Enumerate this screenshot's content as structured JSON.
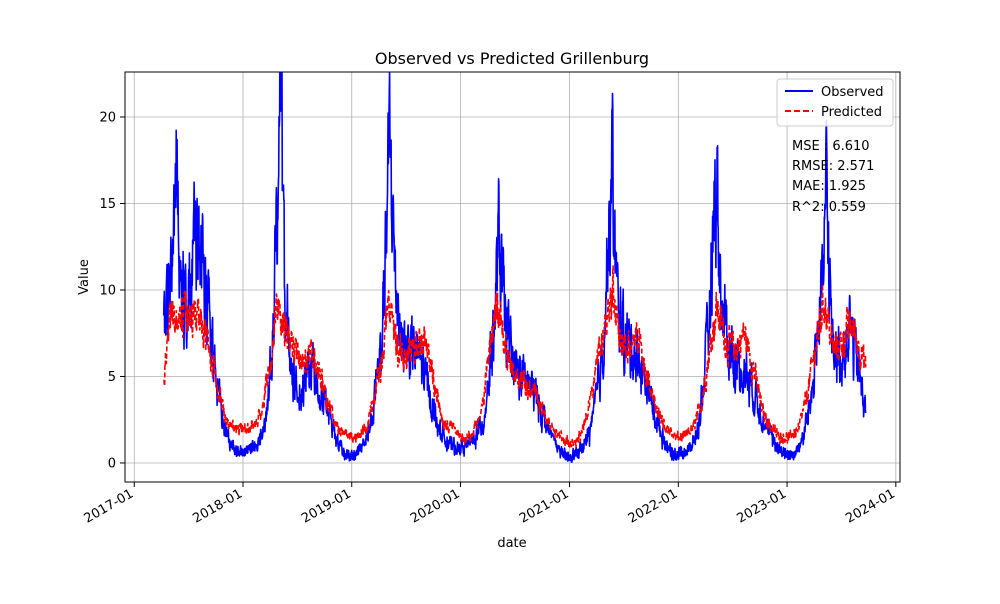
{
  "chart_data": {
    "type": "line",
    "title": "Observed vs Predicted Grillenburg",
    "xlabel": "date",
    "ylabel": "Value",
    "xlim": [
      "2016-12-01",
      "2024-01-15"
    ],
    "ylim": [
      -1.1,
      22.6
    ],
    "x_ticks": [
      "2017-01",
      "2018-01",
      "2019-01",
      "2020-01",
      "2021-01",
      "2022-01",
      "2023-01",
      "2024-01"
    ],
    "y_ticks": [
      0,
      5,
      10,
      15,
      20
    ],
    "grid": true,
    "legend_position": "top-right",
    "date_range": [
      "2017-04-10",
      "2023-09-22"
    ],
    "series": [
      {
        "name": "Observed",
        "color": "#0000ff",
        "style": "solid",
        "anchors": [
          [
            "2017-04-10",
            7.5
          ],
          [
            "2017-05-05",
            11.0
          ],
          [
            "2017-05-20",
            17.0
          ],
          [
            "2017-06-05",
            12.0
          ],
          [
            "2017-06-25",
            9.5
          ],
          [
            "2017-07-10",
            10.5
          ],
          [
            "2017-07-20",
            12.8
          ],
          [
            "2017-08-10",
            11.0
          ],
          [
            "2017-08-25",
            12.0
          ],
          [
            "2017-09-15",
            7.5
          ],
          [
            "2017-10-01",
            5.0
          ],
          [
            "2017-10-25",
            2.5
          ],
          [
            "2017-11-20",
            1.0
          ],
          [
            "2017-12-20",
            0.6
          ],
          [
            "2018-01-20",
            0.7
          ],
          [
            "2018-02-20",
            1.0
          ],
          [
            "2018-03-20",
            2.5
          ],
          [
            "2018-04-10",
            7.0
          ],
          [
            "2018-04-25",
            14.0
          ],
          [
            "2018-05-05",
            21.5
          ],
          [
            "2018-05-20",
            11.0
          ],
          [
            "2018-06-10",
            5.0
          ],
          [
            "2018-07-10",
            4.0
          ],
          [
            "2018-08-10",
            5.5
          ],
          [
            "2018-09-10",
            5.0
          ],
          [
            "2018-10-10",
            3.0
          ],
          [
            "2018-11-10",
            1.5
          ],
          [
            "2018-12-10",
            0.5
          ],
          [
            "2019-01-10",
            0.4
          ],
          [
            "2019-02-10",
            1.0
          ],
          [
            "2019-03-10",
            2.5
          ],
          [
            "2019-04-10",
            6.5
          ],
          [
            "2019-04-25",
            12.0
          ],
          [
            "2019-05-10",
            18.7
          ],
          [
            "2019-05-25",
            11.0
          ],
          [
            "2019-06-20",
            7.0
          ],
          [
            "2019-07-20",
            6.5
          ],
          [
            "2019-08-20",
            6.0
          ],
          [
            "2019-09-20",
            4.0
          ],
          [
            "2019-10-20",
            2.0
          ],
          [
            "2019-11-20",
            1.2
          ],
          [
            "2019-12-20",
            0.8
          ],
          [
            "2020-01-20",
            1.0
          ],
          [
            "2020-02-20",
            1.5
          ],
          [
            "2020-03-20",
            2.5
          ],
          [
            "2020-04-20",
            7.5
          ],
          [
            "2020-05-10",
            13.0
          ],
          [
            "2020-05-25",
            9.0
          ],
          [
            "2020-06-20",
            6.0
          ],
          [
            "2020-07-20",
            5.0
          ],
          [
            "2020-08-20",
            4.5
          ],
          [
            "2020-09-20",
            3.5
          ],
          [
            "2020-10-20",
            2.0
          ],
          [
            "2020-11-20",
            1.0
          ],
          [
            "2020-12-20",
            0.3
          ],
          [
            "2021-01-20",
            0.5
          ],
          [
            "2021-02-20",
            1.0
          ],
          [
            "2021-03-20",
            2.5
          ],
          [
            "2021-04-20",
            6.0
          ],
          [
            "2021-05-10",
            12.0
          ],
          [
            "2021-05-25",
            16.7
          ],
          [
            "2021-06-10",
            9.0
          ],
          [
            "2021-07-10",
            7.0
          ],
          [
            "2021-08-10",
            6.5
          ],
          [
            "2021-09-10",
            5.0
          ],
          [
            "2021-10-10",
            3.0
          ],
          [
            "2021-11-10",
            1.5
          ],
          [
            "2021-12-10",
            0.5
          ],
          [
            "2022-01-10",
            0.6
          ],
          [
            "2022-02-10",
            0.8
          ],
          [
            "2022-03-10",
            2.0
          ],
          [
            "2022-04-10",
            7.0
          ],
          [
            "2022-04-25",
            12.0
          ],
          [
            "2022-05-10",
            17.1
          ],
          [
            "2022-05-25",
            9.0
          ],
          [
            "2022-06-25",
            6.5
          ],
          [
            "2022-07-25",
            5.5
          ],
          [
            "2022-08-25",
            5.0
          ],
          [
            "2022-09-25",
            3.5
          ],
          [
            "2022-10-25",
            2.0
          ],
          [
            "2022-11-25",
            1.0
          ],
          [
            "2022-12-25",
            0.5
          ],
          [
            "2023-01-25",
            0.5
          ],
          [
            "2023-02-25",
            1.5
          ],
          [
            "2023-03-25",
            4.0
          ],
          [
            "2023-04-15",
            8.0
          ],
          [
            "2023-05-01",
            10.0
          ],
          [
            "2023-05-12",
            15.8
          ],
          [
            "2023-06-01",
            7.0
          ],
          [
            "2023-07-01",
            6.0
          ],
          [
            "2023-08-01",
            8.0
          ],
          [
            "2023-09-01",
            5.0
          ],
          [
            "2023-09-22",
            3.0
          ]
        ]
      },
      {
        "name": "Predicted",
        "color": "#ff0000",
        "style": "dashed",
        "anchors": [
          [
            "2017-04-10",
            5.0
          ],
          [
            "2017-05-05",
            8.5
          ],
          [
            "2017-06-05",
            8.5
          ],
          [
            "2017-07-05",
            8.5
          ],
          [
            "2017-08-05",
            8.5
          ],
          [
            "2017-09-05",
            7.0
          ],
          [
            "2017-10-05",
            4.5
          ],
          [
            "2017-11-05",
            2.5
          ],
          [
            "2017-12-05",
            2.0
          ],
          [
            "2018-01-05",
            2.0
          ],
          [
            "2018-02-05",
            2.0
          ],
          [
            "2018-03-05",
            3.0
          ],
          [
            "2018-04-05",
            6.0
          ],
          [
            "2018-04-25",
            9.5
          ],
          [
            "2018-05-20",
            8.0
          ],
          [
            "2018-06-20",
            6.5
          ],
          [
            "2018-07-20",
            5.5
          ],
          [
            "2018-08-20",
            6.5
          ],
          [
            "2018-09-20",
            5.0
          ],
          [
            "2018-10-20",
            3.0
          ],
          [
            "2018-11-20",
            2.0
          ],
          [
            "2018-12-20",
            1.5
          ],
          [
            "2019-01-20",
            1.5
          ],
          [
            "2019-02-20",
            2.0
          ],
          [
            "2019-03-20",
            4.0
          ],
          [
            "2019-04-20",
            7.0
          ],
          [
            "2019-05-05",
            10.0
          ],
          [
            "2019-06-05",
            6.5
          ],
          [
            "2019-07-05",
            6.5
          ],
          [
            "2019-08-05",
            6.5
          ],
          [
            "2019-09-05",
            7.0
          ],
          [
            "2019-10-05",
            4.5
          ],
          [
            "2019-11-05",
            2.5
          ],
          [
            "2019-12-05",
            2.0
          ],
          [
            "2020-01-05",
            1.5
          ],
          [
            "2020-02-05",
            1.5
          ],
          [
            "2020-03-05",
            2.5
          ],
          [
            "2020-04-05",
            6.0
          ],
          [
            "2020-05-05",
            9.0
          ],
          [
            "2020-06-05",
            6.5
          ],
          [
            "2020-07-05",
            5.0
          ],
          [
            "2020-08-05",
            4.5
          ],
          [
            "2020-09-05",
            4.0
          ],
          [
            "2020-10-05",
            3.0
          ],
          [
            "2020-11-05",
            2.0
          ],
          [
            "2020-12-05",
            1.5
          ],
          [
            "2021-01-05",
            1.0
          ],
          [
            "2021-02-05",
            1.5
          ],
          [
            "2021-03-05",
            3.0
          ],
          [
            "2021-04-05",
            6.0
          ],
          [
            "2021-05-05",
            8.0
          ],
          [
            "2021-05-25",
            10.0
          ],
          [
            "2021-06-20",
            7.0
          ],
          [
            "2021-07-20",
            6.5
          ],
          [
            "2021-08-20",
            7.5
          ],
          [
            "2021-09-20",
            5.0
          ],
          [
            "2021-10-20",
            3.0
          ],
          [
            "2021-11-20",
            2.0
          ],
          [
            "2021-12-20",
            1.5
          ],
          [
            "2022-01-20",
            1.5
          ],
          [
            "2022-02-20",
            2.0
          ],
          [
            "2022-03-20",
            3.5
          ],
          [
            "2022-04-20",
            7.0
          ],
          [
            "2022-05-10",
            9.0
          ],
          [
            "2022-06-10",
            7.0
          ],
          [
            "2022-07-10",
            6.5
          ],
          [
            "2022-08-10",
            7.5
          ],
          [
            "2022-09-10",
            5.5
          ],
          [
            "2022-10-10",
            3.0
          ],
          [
            "2022-11-10",
            2.0
          ],
          [
            "2022-12-10",
            1.5
          ],
          [
            "2023-01-10",
            1.5
          ],
          [
            "2023-02-10",
            2.0
          ],
          [
            "2023-03-10",
            4.0
          ],
          [
            "2023-04-10",
            7.0
          ],
          [
            "2023-05-05",
            9.5
          ],
          [
            "2023-06-05",
            6.5
          ],
          [
            "2023-07-05",
            7.0
          ],
          [
            "2023-08-05",
            8.0
          ],
          [
            "2023-09-05",
            6.5
          ],
          [
            "2023-09-22",
            5.5
          ]
        ]
      }
    ],
    "stats": [
      "MSE : 6.610",
      "RMSE: 2.571",
      "MAE: 1.925",
      "R^2: 0.559"
    ]
  }
}
